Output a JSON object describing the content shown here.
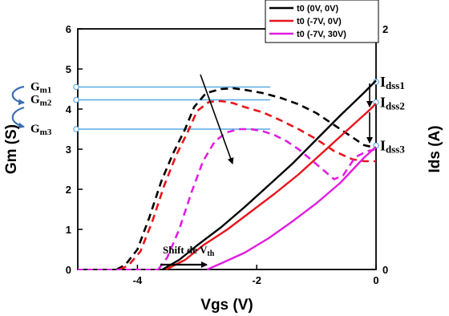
{
  "chart_data": {
    "type": "line",
    "xlabel": "Vgs (V)",
    "ylabel_left": "Gm (S)",
    "ylabel_right": "Ids (A)",
    "xlim": [
      -5,
      0
    ],
    "ylim_left": [
      0,
      6
    ],
    "ylim_right": [
      0,
      2
    ],
    "xticks": [
      {
        "v": -4,
        "label": "-4"
      },
      {
        "v": -2,
        "label": "-2"
      },
      {
        "v": 0,
        "label": "0"
      }
    ],
    "yticks_left": [
      {
        "v": 0,
        "label": "0"
      },
      {
        "v": 1,
        "label": "1"
      },
      {
        "v": 2,
        "label": "2"
      },
      {
        "v": 3,
        "label": "3"
      },
      {
        "v": 4,
        "label": "4"
      },
      {
        "v": 5,
        "label": "5"
      },
      {
        "v": 6,
        "label": "6"
      }
    ],
    "yticks_right": [
      {
        "v": 0,
        "label": "0"
      },
      {
        "v": 2,
        "label": "2"
      }
    ],
    "legend_position": "top-right",
    "colors": {
      "black": "#000000",
      "red": "#e8141c",
      "magenta": "#e01ee0",
      "ref_line": "#5aa9e6",
      "arrow": "#000000"
    },
    "series": [
      {
        "name": "t0 (0V, 0V)",
        "color": "#000000",
        "ids": {
          "x": [
            -3.58,
            -3.3,
            -3.0,
            -2.6,
            -2.2,
            -1.8,
            -1.4,
            -1.0,
            -0.6,
            -0.2,
            0.0
          ],
          "y": [
            0.0,
            0.08,
            0.2,
            0.35,
            0.52,
            0.7,
            0.88,
            1.08,
            1.28,
            1.47,
            1.57
          ]
        },
        "gm": {
          "x": [
            -4.35,
            -4.2,
            -4.0,
            -3.8,
            -3.6,
            -3.4,
            -3.2,
            -3.05,
            -2.85,
            -2.6,
            -2.4,
            -2.2,
            -1.9,
            -1.6,
            -1.3,
            -1.0,
            -0.7,
            -0.4,
            -0.2,
            -0.05
          ],
          "y": [
            0.0,
            0.12,
            0.5,
            1.3,
            2.2,
            2.9,
            3.5,
            4.05,
            4.4,
            4.5,
            4.52,
            4.48,
            4.4,
            4.28,
            4.12,
            3.9,
            3.6,
            3.3,
            3.1,
            3.05
          ]
        }
      },
      {
        "name": "t0 (-7V, 0V)",
        "color": "#e8141c",
        "ids": {
          "x": [
            -3.52,
            -3.2,
            -2.9,
            -2.5,
            -2.1,
            -1.7,
            -1.3,
            -0.9,
            -0.5,
            -0.1,
            0.0
          ],
          "y": [
            0.0,
            0.08,
            0.2,
            0.33,
            0.48,
            0.63,
            0.79,
            0.97,
            1.15,
            1.33,
            1.38
          ]
        },
        "gm": {
          "x": [
            -4.3,
            -4.15,
            -3.95,
            -3.75,
            -3.55,
            -3.35,
            -3.15,
            -3.0,
            -2.8,
            -2.6,
            -2.4,
            -2.2,
            -1.9,
            -1.6,
            -1.3,
            -1.0,
            -0.7,
            -0.4,
            -0.2,
            0.0
          ],
          "y": [
            0.0,
            0.1,
            0.45,
            1.2,
            2.1,
            2.85,
            3.45,
            3.95,
            4.18,
            4.2,
            4.15,
            4.05,
            3.92,
            3.72,
            3.5,
            3.25,
            2.95,
            2.75,
            2.7,
            2.7
          ]
        }
      },
      {
        "name": "t0 (-7V, 30V)",
        "color": "#e01ee0",
        "ids": {
          "x": [
            -2.83,
            -2.6,
            -2.2,
            -1.8,
            -1.4,
            -1.0,
            -0.6,
            -0.2,
            0.0
          ],
          "y": [
            0.0,
            0.05,
            0.14,
            0.26,
            0.4,
            0.55,
            0.72,
            0.93,
            1.02
          ]
        },
        "gm": {
          "x": [
            -3.65,
            -3.5,
            -3.3,
            -3.1,
            -2.9,
            -2.7,
            -2.5,
            -2.3,
            -2.1,
            -1.9,
            -1.7,
            -1.5,
            -1.3,
            -1.1,
            -0.9,
            -0.7,
            -0.55,
            -0.35,
            -0.15,
            0.0
          ],
          "y": [
            0.0,
            0.3,
            1.0,
            1.9,
            2.7,
            3.2,
            3.42,
            3.5,
            3.5,
            3.45,
            3.35,
            3.2,
            3.0,
            2.75,
            2.5,
            2.25,
            2.35,
            2.8,
            2.95,
            3.0
          ]
        }
      }
    ],
    "reference_lines": [
      {
        "label_main": "G",
        "label_sub": "m1",
        "y": 4.55
      },
      {
        "label_main": "G",
        "label_sub": "m2",
        "y": 4.23
      },
      {
        "label_main": "G",
        "label_sub": "m3",
        "y": 3.5
      }
    ],
    "ids_labels": [
      {
        "label_main": "I",
        "label_sub": "dss1",
        "y": 1.56
      },
      {
        "label_main": "I",
        "label_sub": "dss2",
        "y": 1.39
      },
      {
        "label_main": "I",
        "label_sub": "dss3",
        "y": 1.03
      }
    ],
    "shift_annotation": {
      "text_main": "Shift de V",
      "text_sub": "th"
    }
  }
}
